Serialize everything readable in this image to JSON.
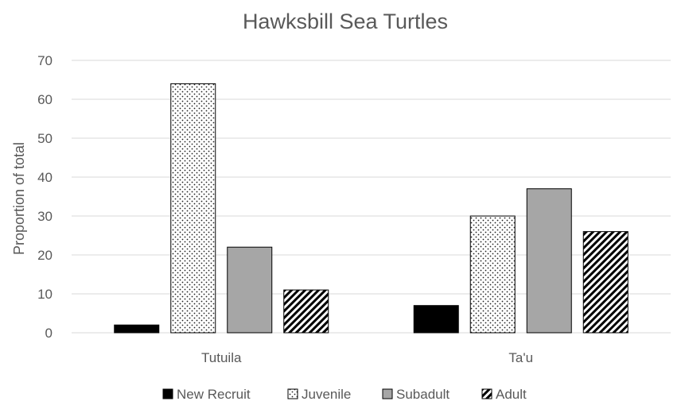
{
  "chart_data": {
    "type": "bar",
    "title": "Hawksbill Sea Turtles",
    "xlabel": "",
    "ylabel": "Proportion of total",
    "categories": [
      "Tutuila",
      "Ta'u"
    ],
    "ylim": [
      0,
      70
    ],
    "yticks": [
      0,
      10,
      20,
      30,
      40,
      50,
      60,
      70
    ],
    "grid": true,
    "legend_position": "bottom",
    "series": [
      {
        "name": "New Recruit",
        "values": [
          2,
          7
        ],
        "fill": "solid-black",
        "color": "#000000"
      },
      {
        "name": "Juvenile",
        "values": [
          64,
          30
        ],
        "fill": "dots",
        "color": "#222222"
      },
      {
        "name": "Subadult",
        "values": [
          22,
          37
        ],
        "fill": "solid-gray",
        "color": "#a6a6a6"
      },
      {
        "name": "Adult",
        "values": [
          11,
          26
        ],
        "fill": "diagonal-stripes",
        "color": "#000000"
      }
    ]
  }
}
